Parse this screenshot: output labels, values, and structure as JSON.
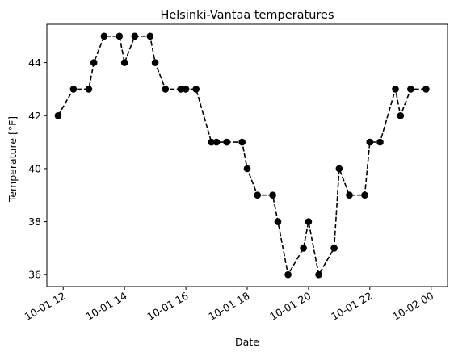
{
  "chart_data": {
    "type": "line",
    "title": "Helsinki-Vantaa temperatures",
    "xlabel": "Date",
    "ylabel": "Temperature [°F]",
    "x_axis_type": "datetime",
    "xlim": [
      "2020-10-01 11:28",
      "2020-10-02 00:32"
    ],
    "ylim": [
      35.55,
      45.45
    ],
    "xticks": [
      {
        "t": "2020-10-01 12:00",
        "label": "10-01 12"
      },
      {
        "t": "2020-10-01 14:00",
        "label": "10-01 14"
      },
      {
        "t": "2020-10-01 16:00",
        "label": "10-01 16"
      },
      {
        "t": "2020-10-01 18:00",
        "label": "10-01 18"
      },
      {
        "t": "2020-10-01 20:00",
        "label": "10-01 20"
      },
      {
        "t": "2020-10-01 22:00",
        "label": "10-01 22"
      },
      {
        "t": "2020-10-02 00:00",
        "label": "10-02 00"
      }
    ],
    "yticks": [
      36,
      38,
      40,
      42,
      44
    ],
    "grid": false,
    "legend": null,
    "style": {
      "color": "#000000",
      "linestyle": "dashed",
      "marker": "circle"
    },
    "series": [
      {
        "points": [
          {
            "t": "2020-10-01 11:50",
            "y": 42
          },
          {
            "t": "2020-10-01 12:20",
            "y": 43
          },
          {
            "t": "2020-10-01 12:50",
            "y": 43
          },
          {
            "t": "2020-10-01 13:00",
            "y": 44
          },
          {
            "t": "2020-10-01 13:20",
            "y": 45
          },
          {
            "t": "2020-10-01 13:50",
            "y": 45
          },
          {
            "t": "2020-10-01 14:00",
            "y": 44
          },
          {
            "t": "2020-10-01 14:20",
            "y": 45
          },
          {
            "t": "2020-10-01 14:50",
            "y": 45
          },
          {
            "t": "2020-10-01 15:00",
            "y": 44
          },
          {
            "t": "2020-10-01 15:20",
            "y": 43
          },
          {
            "t": "2020-10-01 15:50",
            "y": 43
          },
          {
            "t": "2020-10-01 16:00",
            "y": 43
          },
          {
            "t": "2020-10-01 16:20",
            "y": 43
          },
          {
            "t": "2020-10-01 16:50",
            "y": 41
          },
          {
            "t": "2020-10-01 17:00",
            "y": 41
          },
          {
            "t": "2020-10-01 17:20",
            "y": 41
          },
          {
            "t": "2020-10-01 17:50",
            "y": 41
          },
          {
            "t": "2020-10-01 18:00",
            "y": 40
          },
          {
            "t": "2020-10-01 18:20",
            "y": 39
          },
          {
            "t": "2020-10-01 18:50",
            "y": 39
          },
          {
            "t": "2020-10-01 19:00",
            "y": 38
          },
          {
            "t": "2020-10-01 19:20",
            "y": 36
          },
          {
            "t": "2020-10-01 19:50",
            "y": 37
          },
          {
            "t": "2020-10-01 20:00",
            "y": 38
          },
          {
            "t": "2020-10-01 20:20",
            "y": 36
          },
          {
            "t": "2020-10-01 20:50",
            "y": 37
          },
          {
            "t": "2020-10-01 21:00",
            "y": 40
          },
          {
            "t": "2020-10-01 21:20",
            "y": 39
          },
          {
            "t": "2020-10-01 21:50",
            "y": 39
          },
          {
            "t": "2020-10-01 22:00",
            "y": 41
          },
          {
            "t": "2020-10-01 22:20",
            "y": 41
          },
          {
            "t": "2020-10-01 22:50",
            "y": 43
          },
          {
            "t": "2020-10-01 23:00",
            "y": 42
          },
          {
            "t": "2020-10-01 23:20",
            "y": 43
          },
          {
            "t": "2020-10-01 23:50",
            "y": 43
          }
        ]
      }
    ]
  }
}
